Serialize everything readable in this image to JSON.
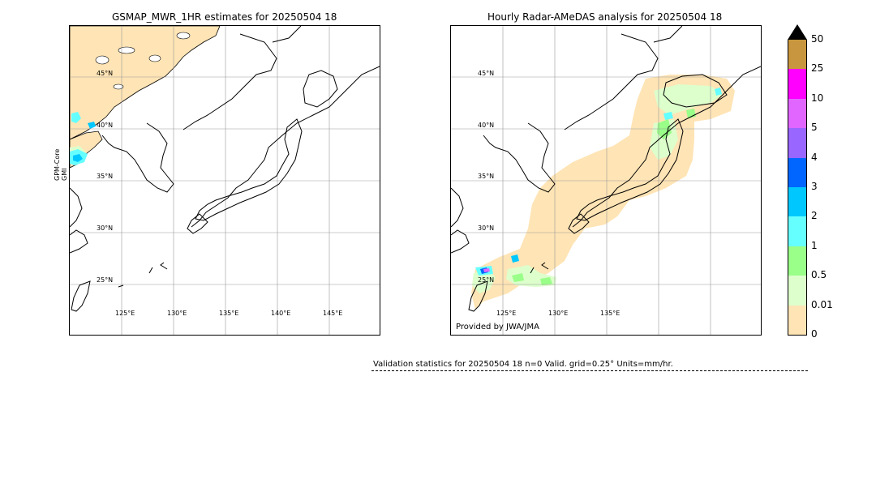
{
  "left_panel": {
    "title": "GSMAP_MWR_1HR estimates for 20250504 18",
    "side_label_top": "GPM-Core",
    "side_label_bottom": "GMI",
    "lat_labels": [
      "45°N",
      "40°N",
      "35°N",
      "30°N",
      "25°N"
    ],
    "lon_labels": [
      "125°E",
      "130°E",
      "135°E",
      "140°E",
      "145°E"
    ]
  },
  "right_panel": {
    "title": "Hourly Radar-AMeDAS analysis for 20250504 18",
    "lat_labels": [
      "45°N",
      "40°N",
      "35°N",
      "30°N",
      "25°N"
    ],
    "lon_labels": [
      "125°E",
      "130°E",
      "135°E"
    ],
    "provided_by": "Provided by JWA/JMA"
  },
  "colorbar": {
    "levels": [
      "50",
      "25",
      "10",
      "5",
      "4",
      "3",
      "2",
      "1",
      "0.5",
      "0.01",
      "0"
    ],
    "colors": [
      "#c8963e",
      "#ff00ff",
      "#e066ff",
      "#9966ff",
      "#0066ff",
      "#00c8ff",
      "#66ffff",
      "#99ff88",
      "#ddffcc",
      "#ffe4b5"
    ],
    "extend_max_color": "#000000"
  },
  "validation": {
    "text": "Validation statistics for 20250504 18  n=0 Valid. grid=0.25° Units=mm/hr."
  }
}
